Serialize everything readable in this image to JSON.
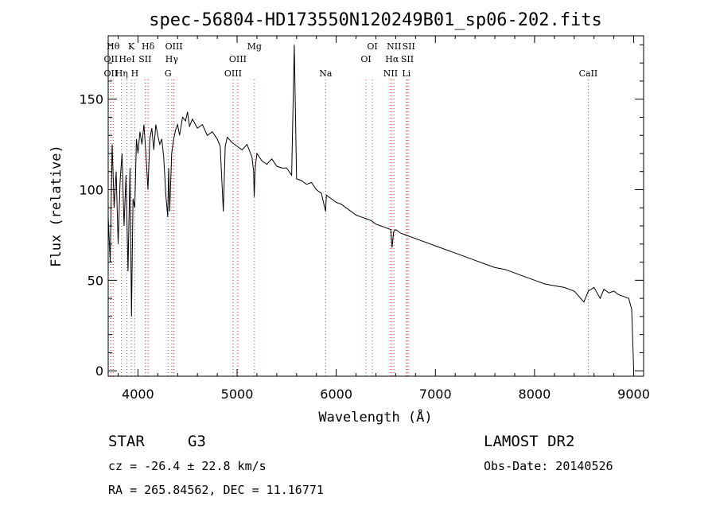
{
  "chart_data": {
    "type": "line",
    "title": "spec-56804-HD173550N120249B01_sp06-202.fits",
    "xlabel": "Wavelength (Å)",
    "ylabel": "Flux (relative)",
    "xlim": [
      3700,
      9100
    ],
    "ylim": [
      -3,
      185
    ],
    "x_ticks": [
      4000,
      5000,
      6000,
      7000,
      8000,
      9000
    ],
    "y_ticks": [
      0,
      50,
      100,
      150
    ],
    "grid": false,
    "series": [
      {
        "x": [
          3700,
          3720,
          3740,
          3760,
          3780,
          3800,
          3820,
          3840,
          3860,
          3880,
          3900,
          3920,
          3935,
          3950,
          3968,
          3985,
          4000,
          4020,
          4040,
          4060,
          4080,
          4101,
          4120,
          4140,
          4160,
          4180,
          4200,
          4220,
          4240,
          4260,
          4280,
          4300,
          4310,
          4320,
          4340,
          4360,
          4380,
          4400,
          4420,
          4450,
          4480,
          4500,
          4520,
          4550,
          4600,
          4650,
          4700,
          4750,
          4800,
          4830,
          4861,
          4880,
          4900,
          4950,
          5000,
          5050,
          5100,
          5150,
          5167,
          5172,
          5183,
          5200,
          5250,
          5300,
          5350,
          5400,
          5450,
          5500,
          5550,
          5577,
          5600,
          5650,
          5700,
          5750,
          5800,
          5850,
          5893,
          5900,
          5950,
          6000,
          6050,
          6100,
          6150,
          6200,
          6250,
          6300,
          6350,
          6400,
          6450,
          6500,
          6550,
          6563,
          6580,
          6600,
          6650,
          6700,
          6750,
          6800,
          6850,
          6900,
          6950,
          7000,
          7100,
          7200,
          7300,
          7400,
          7500,
          7600,
          7700,
          7800,
          7900,
          8000,
          8100,
          8200,
          8300,
          8400,
          8498,
          8542,
          8600,
          8662,
          8700,
          8750,
          8800,
          8850,
          8900,
          8950,
          8980,
          9000
        ],
        "values": [
          85,
          60,
          125,
          90,
          110,
          70,
          105,
          120,
          80,
          108,
          55,
          112,
          30,
          95,
          90,
          128,
          120,
          132,
          125,
          136,
          120,
          100,
          128,
          134,
          122,
          136,
          130,
          125,
          128,
          118,
          98,
          85,
          112,
          88,
          120,
          128,
          133,
          136,
          130,
          140,
          138,
          143,
          135,
          139,
          134,
          136,
          130,
          132,
          128,
          124,
          88,
          124,
          129,
          126,
          124,
          122,
          125,
          118,
          110,
          96,
          112,
          120,
          116,
          114,
          117,
          113,
          112,
          112,
          108,
          180,
          106,
          105,
          103,
          104,
          100,
          98,
          88,
          97,
          95,
          93,
          92,
          90,
          88,
          86,
          85,
          84,
          83,
          81,
          80,
          79,
          78,
          68,
          77,
          78,
          76,
          75,
          74,
          73,
          72,
          71,
          70,
          69,
          67,
          65,
          63,
          61,
          59,
          57,
          56,
          54,
          52,
          50,
          48,
          47,
          46,
          44,
          38,
          44,
          46,
          40,
          45,
          43,
          44,
          42,
          41,
          40,
          34,
          1
        ]
      }
    ],
    "line_markers": [
      {
        "wavelength": 3727,
        "label": "OII",
        "row": 2
      },
      {
        "wavelength": 3727,
        "label": "OII",
        "row": 3
      },
      {
        "wavelength": 3750,
        "label": "Hθ",
        "row": 1
      },
      {
        "wavelength": 3835,
        "label": "Hη",
        "row": 3
      },
      {
        "wavelength": 3889,
        "label": "HeI",
        "row": 2
      },
      {
        "wavelength": 3934,
        "label": "K",
        "row": 1
      },
      {
        "wavelength": 3968,
        "label": "H",
        "row": 3
      },
      {
        "wavelength": 4072,
        "label": "SII",
        "row": 2
      },
      {
        "wavelength": 4102,
        "label": "Hδ",
        "row": 1
      },
      {
        "wavelength": 4304,
        "label": "G",
        "row": 3
      },
      {
        "wavelength": 4341,
        "label": "Hγ",
        "row": 2
      },
      {
        "wavelength": 4363,
        "label": "OIII",
        "row": 1
      },
      {
        "wavelength": 4959,
        "label": "OIII",
        "row": 3
      },
      {
        "wavelength": 5007,
        "label": "OIII",
        "row": 2
      },
      {
        "wavelength": 5175,
        "label": "Mg",
        "row": 1
      },
      {
        "wavelength": 5893,
        "label": "Na",
        "row": 3
      },
      {
        "wavelength": 6300,
        "label": "OI",
        "row": 2
      },
      {
        "wavelength": 6364,
        "label": "OI",
        "row": 1
      },
      {
        "wavelength": 6548,
        "label": "NII",
        "row": 3
      },
      {
        "wavelength": 6563,
        "label": "Hα",
        "row": 2
      },
      {
        "wavelength": 6583,
        "label": "NII",
        "row": 1
      },
      {
        "wavelength": 6707,
        "label": "Li",
        "row": 3
      },
      {
        "wavelength": 6717,
        "label": "SII",
        "row": 2
      },
      {
        "wavelength": 6731,
        "label": "SII",
        "row": 1
      },
      {
        "wavelength": 8542,
        "label": "CaII",
        "row": 3
      }
    ],
    "marker_color": "#d04040"
  },
  "info": {
    "object_class": "STAR",
    "subclass": "G3",
    "redshift": "cz = -26.4 ± 22.8 km/s",
    "coords": "RA = 265.84562, DEC =  11.16771",
    "survey": "LAMOST DR2",
    "obs_date": "Obs-Date: 20140526"
  }
}
